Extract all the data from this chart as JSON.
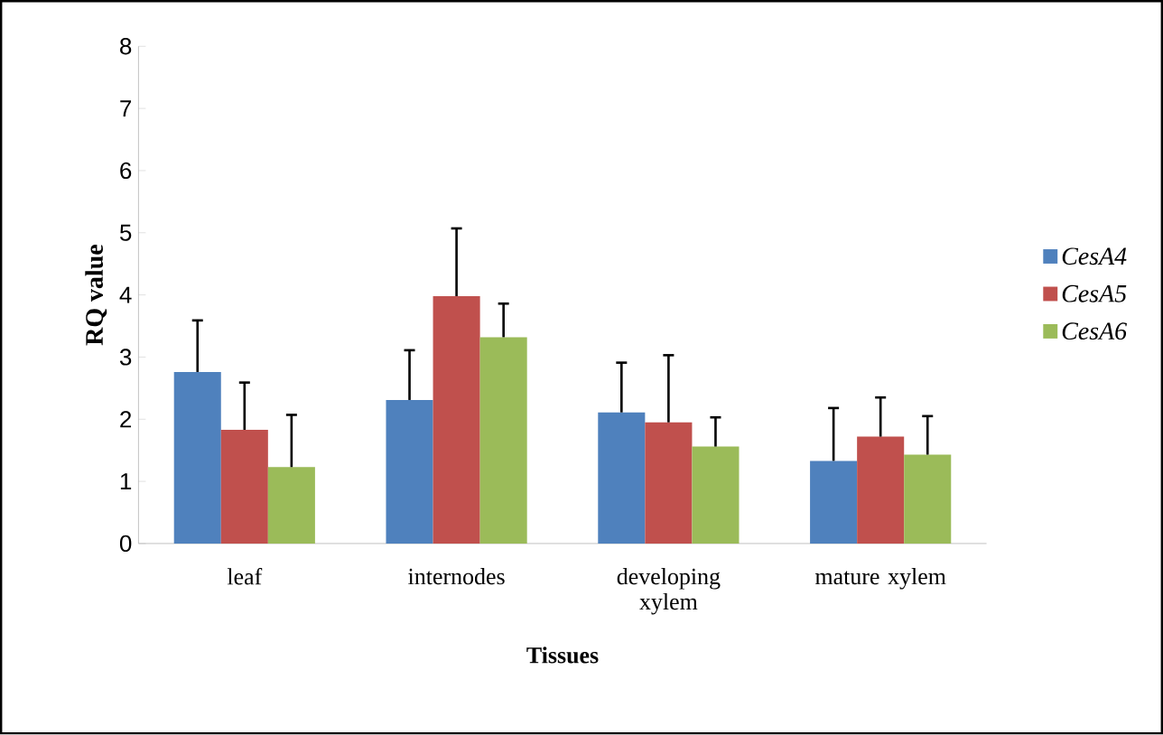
{
  "chart_data": {
    "type": "bar",
    "xlabel": "Tissues",
    "ylabel": "RQ value",
    "categories": [
      "leaf",
      "internodes",
      "developing xylem",
      "mature xylem"
    ],
    "series": [
      {
        "name": "CesA4",
        "color": "#4f81bd",
        "values": [
          2.76,
          2.31,
          2.11,
          1.33
        ],
        "errors": [
          [
            2.76,
            3.59
          ],
          [
            2.31,
            3.11
          ],
          [
            2.11,
            2.91
          ],
          [
            1.33,
            2.18
          ]
        ]
      },
      {
        "name": "CesA5",
        "color": "#c0504d",
        "values": [
          1.83,
          3.98,
          1.95,
          1.72
        ],
        "errors": [
          [
            1.83,
            2.59
          ],
          [
            3.98,
            5.07
          ],
          [
            1.95,
            3.03
          ],
          [
            1.72,
            2.35
          ]
        ]
      },
      {
        "name": "CesA6",
        "color": "#9bbb59",
        "values": [
          1.23,
          3.32,
          1.56,
          1.43
        ],
        "errors": [
          [
            1.23,
            2.07
          ],
          [
            3.32,
            3.86
          ],
          [
            1.56,
            2.03
          ],
          [
            1.43,
            2.05
          ]
        ]
      }
    ],
    "ylim": [
      0,
      8
    ],
    "yticks": [
      0,
      1,
      2,
      3,
      4,
      5,
      6,
      7,
      8
    ],
    "legend": "right",
    "grid": false
  }
}
